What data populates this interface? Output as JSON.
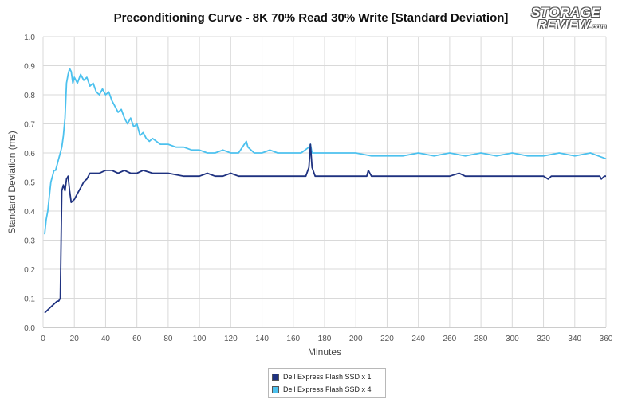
{
  "logo": {
    "line1": "STORAGE",
    "line2": "REVIEW",
    "line2_suffix": ".com"
  },
  "colors": {
    "series1": "#1f3280",
    "series2": "#4cc1ee",
    "grid": "#d9d9d9",
    "axis": "#999999"
  },
  "chart_data": {
    "type": "line",
    "title": "Preconditioning Curve - 8K 70% Read 30% Write [Standard Deviation]",
    "xlabel": "Minutes",
    "ylabel": "Standard Deviation (ms)",
    "xlim": [
      0,
      360
    ],
    "ylim": [
      0,
      1.0
    ],
    "xticks": [
      0,
      20,
      40,
      60,
      80,
      100,
      120,
      140,
      160,
      180,
      200,
      220,
      240,
      260,
      280,
      300,
      320,
      340,
      360
    ],
    "yticks": [
      "0.0",
      "0.1",
      "0.2",
      "0.3",
      "0.4",
      "0.5",
      "0.6",
      "0.7",
      "0.8",
      "0.9",
      "1.0"
    ],
    "grid": true,
    "legend_position": "bottom",
    "series": [
      {
        "name": "Dell Express Flash SSD x 1",
        "x": [
          1,
          3,
          5,
          7,
          9,
          10,
          11,
          12,
          13,
          14,
          15,
          16,
          17,
          18,
          20,
          22,
          24,
          26,
          28,
          30,
          33,
          36,
          40,
          44,
          48,
          52,
          56,
          60,
          64,
          70,
          80,
          90,
          100,
          105,
          110,
          115,
          120,
          125,
          130,
          140,
          150,
          160,
          168,
          170,
          171,
          172,
          174,
          180,
          190,
          200,
          207,
          208,
          210,
          220,
          240,
          260,
          266,
          270,
          280,
          300,
          320,
          323,
          325,
          340,
          356,
          357,
          359,
          360
        ],
        "y": [
          0.05,
          0.06,
          0.07,
          0.08,
          0.09,
          0.09,
          0.1,
          0.47,
          0.49,
          0.47,
          0.51,
          0.52,
          0.47,
          0.43,
          0.44,
          0.46,
          0.48,
          0.5,
          0.51,
          0.53,
          0.53,
          0.53,
          0.54,
          0.54,
          0.53,
          0.54,
          0.53,
          0.53,
          0.54,
          0.53,
          0.53,
          0.52,
          0.52,
          0.53,
          0.52,
          0.52,
          0.53,
          0.52,
          0.52,
          0.52,
          0.52,
          0.52,
          0.52,
          0.55,
          0.63,
          0.55,
          0.52,
          0.52,
          0.52,
          0.52,
          0.52,
          0.54,
          0.52,
          0.52,
          0.52,
          0.52,
          0.53,
          0.52,
          0.52,
          0.52,
          0.52,
          0.51,
          0.52,
          0.52,
          0.52,
          0.51,
          0.52,
          0.52
        ]
      },
      {
        "name": "Dell Express Flash SSD x 4",
        "x": [
          1,
          2,
          3,
          4,
          5,
          6,
          7,
          8,
          9,
          10,
          11,
          12,
          13,
          14,
          15,
          16,
          17,
          18,
          19,
          20,
          22,
          24,
          26,
          28,
          30,
          32,
          34,
          36,
          38,
          40,
          42,
          44,
          46,
          48,
          50,
          52,
          54,
          56,
          58,
          60,
          62,
          64,
          66,
          68,
          70,
          75,
          80,
          85,
          90,
          95,
          100,
          105,
          110,
          115,
          120,
          125,
          130,
          131,
          135,
          140,
          145,
          150,
          155,
          160,
          165,
          170,
          171,
          172,
          175,
          180,
          190,
          200,
          210,
          220,
          230,
          240,
          250,
          260,
          270,
          280,
          290,
          300,
          310,
          320,
          330,
          340,
          350,
          355,
          360
        ],
        "y": [
          0.32,
          0.37,
          0.4,
          0.45,
          0.5,
          0.52,
          0.54,
          0.54,
          0.56,
          0.58,
          0.6,
          0.62,
          0.66,
          0.72,
          0.84,
          0.87,
          0.89,
          0.88,
          0.84,
          0.86,
          0.84,
          0.87,
          0.85,
          0.86,
          0.83,
          0.84,
          0.81,
          0.8,
          0.82,
          0.8,
          0.81,
          0.78,
          0.76,
          0.74,
          0.75,
          0.72,
          0.7,
          0.72,
          0.69,
          0.7,
          0.66,
          0.67,
          0.65,
          0.64,
          0.65,
          0.63,
          0.63,
          0.62,
          0.62,
          0.61,
          0.61,
          0.6,
          0.6,
          0.61,
          0.6,
          0.6,
          0.64,
          0.62,
          0.6,
          0.6,
          0.61,
          0.6,
          0.6,
          0.6,
          0.6,
          0.62,
          0.63,
          0.6,
          0.6,
          0.6,
          0.6,
          0.6,
          0.59,
          0.59,
          0.59,
          0.6,
          0.59,
          0.6,
          0.59,
          0.6,
          0.59,
          0.6,
          0.59,
          0.59,
          0.6,
          0.59,
          0.6,
          0.59,
          0.58
        ]
      }
    ]
  }
}
